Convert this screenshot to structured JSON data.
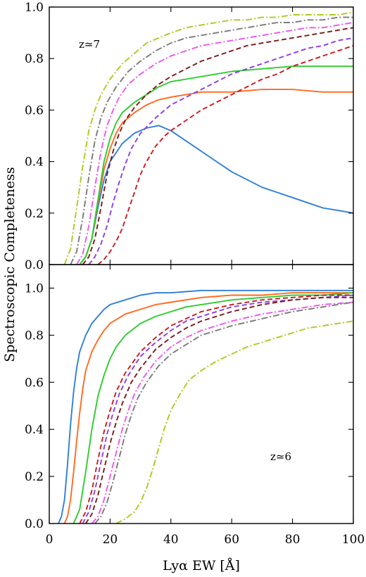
{
  "figure": {
    "ylabel": "Spectroscopic Completeness",
    "xlabel": "Lyα EW [Å]"
  },
  "chart_data": [
    {
      "type": "line",
      "annotation": "z≃7",
      "xlim": [
        0,
        100
      ],
      "ylim": [
        0,
        1.0
      ],
      "x_ticks": [
        0,
        20,
        40,
        60,
        80,
        100
      ],
      "x_tick_labels": [
        "0",
        "20",
        "40",
        "60",
        "80",
        "100"
      ],
      "y_ticks": [
        0,
        0.2,
        0.4,
        0.6,
        0.8,
        1.0
      ],
      "y_tick_labels": [
        "0.0",
        "0.2",
        "0.4",
        "0.6",
        "0.8",
        "1.0"
      ],
      "grid": false,
      "series": [
        {
          "color": "#2f7fd6",
          "style": "solid",
          "x": [
            10,
            12,
            14,
            16,
            18,
            20,
            24,
            28,
            32,
            36,
            40,
            45,
            50,
            55,
            60,
            65,
            70,
            75,
            80,
            85,
            90,
            95,
            100
          ],
          "y": [
            0.0,
            0.03,
            0.1,
            0.22,
            0.33,
            0.4,
            0.47,
            0.51,
            0.53,
            0.54,
            0.52,
            0.48,
            0.44,
            0.4,
            0.36,
            0.33,
            0.3,
            0.28,
            0.26,
            0.24,
            0.22,
            0.21,
            0.2
          ]
        },
        {
          "color": "#ff6a1f",
          "style": "solid",
          "x": [
            10,
            12,
            14,
            16,
            18,
            20,
            22,
            24,
            28,
            32,
            36,
            40,
            45,
            50,
            55,
            60,
            70,
            80,
            90,
            100
          ],
          "y": [
            0.0,
            0.03,
            0.1,
            0.24,
            0.37,
            0.45,
            0.51,
            0.55,
            0.59,
            0.62,
            0.64,
            0.65,
            0.66,
            0.67,
            0.67,
            0.67,
            0.68,
            0.68,
            0.67,
            0.67
          ]
        },
        {
          "color": "#2ecc2e",
          "style": "solid",
          "x": [
            10,
            12,
            14,
            16,
            18,
            20,
            22,
            24,
            28,
            32,
            36,
            40,
            45,
            50,
            55,
            60,
            70,
            80,
            90,
            100
          ],
          "y": [
            0.0,
            0.03,
            0.1,
            0.25,
            0.4,
            0.49,
            0.55,
            0.59,
            0.63,
            0.66,
            0.69,
            0.71,
            0.72,
            0.73,
            0.74,
            0.75,
            0.76,
            0.77,
            0.77,
            0.77
          ]
        },
        {
          "color": "#cc1a1a",
          "style": "dash",
          "x": [
            16,
            18,
            20,
            22,
            24,
            26,
            28,
            30,
            32,
            35,
            38,
            40,
            45,
            50,
            55,
            60,
            65,
            70,
            75,
            80,
            85,
            90,
            95,
            100
          ],
          "y": [
            0.0,
            0.02,
            0.05,
            0.09,
            0.14,
            0.21,
            0.28,
            0.35,
            0.4,
            0.46,
            0.5,
            0.52,
            0.56,
            0.6,
            0.63,
            0.66,
            0.69,
            0.72,
            0.74,
            0.77,
            0.79,
            0.81,
            0.83,
            0.85
          ]
        },
        {
          "color": "#8a3ee6",
          "style": "dash",
          "x": [
            13,
            15,
            17,
            19,
            21,
            23,
            25,
            27,
            30,
            35,
            40,
            45,
            50,
            55,
            60,
            65,
            70,
            75,
            80,
            85,
            90,
            95,
            100
          ],
          "y": [
            0.0,
            0.03,
            0.08,
            0.15,
            0.24,
            0.32,
            0.39,
            0.45,
            0.51,
            0.57,
            0.62,
            0.65,
            0.68,
            0.71,
            0.74,
            0.76,
            0.78,
            0.8,
            0.82,
            0.84,
            0.85,
            0.87,
            0.88
          ]
        },
        {
          "color": "#7a1a1a",
          "style": "dash",
          "x": [
            11,
            13,
            15,
            17,
            19,
            21,
            23,
            25,
            28,
            32,
            36,
            40,
            45,
            50,
            55,
            60,
            65,
            70,
            75,
            80,
            85,
            90,
            95,
            100
          ],
          "y": [
            0.0,
            0.03,
            0.1,
            0.22,
            0.35,
            0.44,
            0.51,
            0.56,
            0.61,
            0.66,
            0.7,
            0.73,
            0.76,
            0.79,
            0.81,
            0.83,
            0.85,
            0.86,
            0.87,
            0.88,
            0.89,
            0.9,
            0.91,
            0.92
          ]
        },
        {
          "color": "#ee55ee",
          "style": "dashdot",
          "x": [
            9,
            11,
            13,
            15,
            17,
            19,
            21,
            23,
            26,
            30,
            35,
            40,
            45,
            50,
            55,
            60,
            65,
            70,
            75,
            80,
            85,
            90,
            95,
            100
          ],
          "y": [
            0.0,
            0.04,
            0.15,
            0.3,
            0.44,
            0.54,
            0.6,
            0.65,
            0.7,
            0.74,
            0.78,
            0.81,
            0.83,
            0.85,
            0.86,
            0.87,
            0.88,
            0.89,
            0.9,
            0.91,
            0.92,
            0.92,
            0.93,
            0.94
          ]
        },
        {
          "color": "#7a7a7a",
          "style": "dashdot",
          "x": [
            7,
            9,
            11,
            13,
            15,
            17,
            19,
            22,
            26,
            30,
            35,
            40,
            45,
            50,
            55,
            60,
            65,
            70,
            75,
            80,
            85,
            90,
            95,
            100
          ],
          "y": [
            0.0,
            0.05,
            0.18,
            0.34,
            0.48,
            0.57,
            0.63,
            0.69,
            0.75,
            0.79,
            0.83,
            0.86,
            0.88,
            0.89,
            0.9,
            0.91,
            0.92,
            0.93,
            0.94,
            0.94,
            0.95,
            0.95,
            0.96,
            0.96
          ]
        },
        {
          "color": "#a9cc1f",
          "style": "dashdot",
          "x": [
            5,
            7,
            9,
            11,
            13,
            15,
            17,
            20,
            24,
            28,
            32,
            36,
            40,
            45,
            50,
            55,
            60,
            65,
            70,
            75,
            80,
            85,
            90,
            95,
            100
          ],
          "y": [
            0.0,
            0.06,
            0.22,
            0.38,
            0.52,
            0.6,
            0.66,
            0.72,
            0.78,
            0.82,
            0.86,
            0.88,
            0.9,
            0.92,
            0.93,
            0.94,
            0.95,
            0.95,
            0.96,
            0.96,
            0.97,
            0.97,
            0.97,
            0.97,
            0.98
          ]
        }
      ]
    },
    {
      "type": "line",
      "annotation": "z≃6",
      "xlim": [
        0,
        100
      ],
      "ylim": [
        0,
        1.1
      ],
      "x_ticks": [
        0,
        20,
        40,
        60,
        80,
        100
      ],
      "x_tick_labels": [
        "0",
        "20",
        "40",
        "60",
        "80",
        "100"
      ],
      "y_ticks": [
        0,
        0.2,
        0.4,
        0.6,
        0.8,
        1.0
      ],
      "y_tick_labels": [
        "0.0",
        "0.2",
        "0.4",
        "0.6",
        "0.8",
        "1.0"
      ],
      "grid": false,
      "series": [
        {
          "color": "#2f7fd6",
          "style": "solid",
          "x": [
            3,
            4,
            5,
            6,
            7,
            8,
            9,
            10,
            12,
            14,
            16,
            18,
            20,
            25,
            30,
            35,
            40,
            50,
            60,
            70,
            80,
            90,
            100
          ],
          "y": [
            0.0,
            0.03,
            0.1,
            0.25,
            0.42,
            0.56,
            0.66,
            0.73,
            0.8,
            0.85,
            0.88,
            0.91,
            0.93,
            0.95,
            0.97,
            0.98,
            0.98,
            0.99,
            0.99,
            0.99,
            0.99,
            0.99,
            0.99
          ]
        },
        {
          "color": "#ff6a1f",
          "style": "solid",
          "x": [
            5,
            6,
            7,
            8,
            9,
            10,
            11,
            12,
            14,
            16,
            18,
            20,
            25,
            30,
            35,
            40,
            50,
            60,
            70,
            80,
            90,
            100
          ],
          "y": [
            0.0,
            0.03,
            0.1,
            0.22,
            0.35,
            0.47,
            0.57,
            0.65,
            0.73,
            0.78,
            0.82,
            0.85,
            0.89,
            0.91,
            0.93,
            0.94,
            0.96,
            0.97,
            0.97,
            0.98,
            0.98,
            0.98
          ]
        },
        {
          "color": "#2ecc2e",
          "style": "solid",
          "x": [
            8,
            10,
            12,
            14,
            16,
            18,
            20,
            22,
            25,
            30,
            35,
            40,
            45,
            50,
            60,
            70,
            80,
            90,
            100
          ],
          "y": [
            0.0,
            0.06,
            0.22,
            0.4,
            0.54,
            0.63,
            0.7,
            0.75,
            0.8,
            0.85,
            0.88,
            0.9,
            0.92,
            0.93,
            0.95,
            0.96,
            0.97,
            0.97,
            0.98
          ]
        },
        {
          "color": "#cc1a1a",
          "style": "dash",
          "x": [
            10,
            12,
            14,
            16,
            18,
            20,
            22,
            25,
            30,
            35,
            40,
            45,
            50,
            60,
            70,
            80,
            90,
            100
          ],
          "y": [
            0.0,
            0.05,
            0.14,
            0.27,
            0.39,
            0.48,
            0.56,
            0.64,
            0.73,
            0.79,
            0.84,
            0.87,
            0.9,
            0.93,
            0.95,
            0.96,
            0.97,
            0.97
          ]
        },
        {
          "color": "#8a3ee6",
          "style": "dash",
          "x": [
            11,
            13,
            15,
            17,
            19,
            21,
            23,
            26,
            30,
            35,
            40,
            45,
            50,
            60,
            70,
            80,
            90,
            100
          ],
          "y": [
            0.0,
            0.05,
            0.14,
            0.26,
            0.38,
            0.47,
            0.55,
            0.63,
            0.71,
            0.77,
            0.82,
            0.86,
            0.88,
            0.92,
            0.94,
            0.95,
            0.96,
            0.97
          ]
        },
        {
          "color": "#7a1a1a",
          "style": "dash",
          "x": [
            12,
            14,
            16,
            18,
            20,
            22,
            24,
            27,
            30,
            35,
            40,
            45,
            50,
            60,
            70,
            80,
            90,
            100
          ],
          "y": [
            0.0,
            0.04,
            0.12,
            0.23,
            0.34,
            0.43,
            0.51,
            0.6,
            0.66,
            0.74,
            0.79,
            0.83,
            0.86,
            0.9,
            0.93,
            0.95,
            0.96,
            0.96
          ]
        },
        {
          "color": "#ee55ee",
          "style": "dashdot",
          "x": [
            14,
            16,
            18,
            20,
            22,
            24,
            26,
            28,
            31,
            35,
            40,
            45,
            50,
            60,
            70,
            80,
            90,
            100
          ],
          "y": [
            0.0,
            0.03,
            0.1,
            0.2,
            0.3,
            0.4,
            0.48,
            0.55,
            0.62,
            0.69,
            0.75,
            0.79,
            0.82,
            0.86,
            0.89,
            0.91,
            0.93,
            0.94
          ]
        },
        {
          "color": "#7a7a7a",
          "style": "dashdot",
          "x": [
            15,
            17,
            19,
            21,
            23,
            25,
            27,
            29,
            32,
            36,
            40,
            45,
            50,
            60,
            70,
            80,
            90,
            100
          ],
          "y": [
            0.0,
            0.03,
            0.09,
            0.18,
            0.28,
            0.38,
            0.46,
            0.53,
            0.6,
            0.67,
            0.72,
            0.76,
            0.8,
            0.84,
            0.87,
            0.9,
            0.92,
            0.94
          ]
        },
        {
          "color": "#a9cc1f",
          "style": "dashdot",
          "x": [
            22,
            25,
            28,
            30,
            32,
            34,
            36,
            38,
            40,
            43,
            46,
            50,
            55,
            60,
            65,
            70,
            75,
            80,
            85,
            90,
            95,
            100
          ],
          "y": [
            0.0,
            0.02,
            0.05,
            0.09,
            0.15,
            0.23,
            0.32,
            0.41,
            0.48,
            0.55,
            0.61,
            0.65,
            0.69,
            0.72,
            0.75,
            0.77,
            0.79,
            0.81,
            0.83,
            0.84,
            0.85,
            0.86
          ]
        }
      ]
    }
  ]
}
